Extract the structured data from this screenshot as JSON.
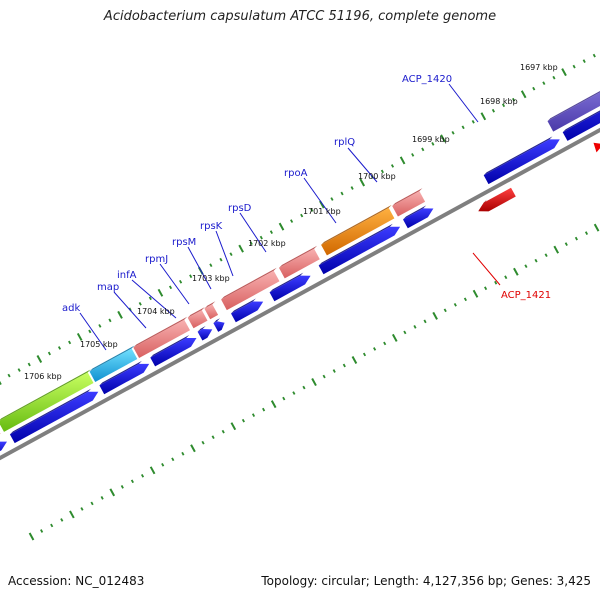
{
  "title": "Acidobacterium capsulatum ATCC 51196, complete genome",
  "footer": {
    "accession": "Accession: NC_012483",
    "summary": "Topology: circular; Length: 4,127,356 bp; Genes: 3,425"
  },
  "colors": {
    "gene_label": "#1a1acc",
    "gene_label_reverse": "#e00000",
    "tick": "#2e8b2e",
    "backbone": "#7f7f7f",
    "cds_forward": "#0000ee",
    "cds_reverse": "#ee0000",
    "highlight_rpoA": "#ee8800",
    "highlight_map": "#22b8ee",
    "highlight_adk": "#88dd22",
    "highlight_ACP_1420": "#6a5acd",
    "feature_default": "#f08080"
  },
  "kbp_labels": [
    "1697 kbp",
    "1698 kbp",
    "1699 kbp",
    "1700 kbp",
    "1701 kbp",
    "1702 kbp",
    "1703 kbp",
    "1704 kbp",
    "1705 kbp",
    "1706 kbp"
  ],
  "gene_labels": [
    {
      "text": "ACP_1420",
      "strand": "forward"
    },
    {
      "text": "rplQ",
      "strand": "forward"
    },
    {
      "text": "rpoA",
      "strand": "forward"
    },
    {
      "text": "rpsD",
      "strand": "forward"
    },
    {
      "text": "rpsK",
      "strand": "forward"
    },
    {
      "text": "rpsM",
      "strand": "forward"
    },
    {
      "text": "rpmJ",
      "strand": "forward"
    },
    {
      "text": "infA",
      "strand": "forward"
    },
    {
      "text": "map",
      "strand": "forward"
    },
    {
      "text": "adk",
      "strand": "forward"
    },
    {
      "text": "ACP_1421",
      "strand": "reverse"
    }
  ]
}
